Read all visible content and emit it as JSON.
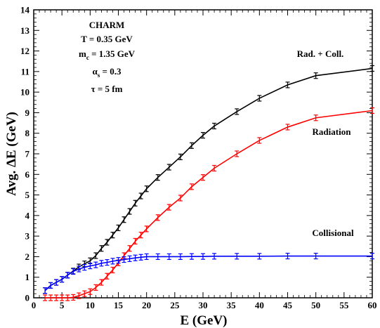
{
  "chart_data": {
    "type": "line",
    "xlabel": "E (GeV)",
    "ylabel": "Avg. ΔE (GeV)",
    "xlim": [
      0,
      60
    ],
    "ylim": [
      0,
      14
    ],
    "xticks": [
      "0",
      "5",
      "10",
      "15",
      "20",
      "25",
      "30",
      "35",
      "40",
      "45",
      "50",
      "55",
      "60"
    ],
    "yticks": [
      "0",
      "1",
      "2",
      "3",
      "4",
      "5",
      "6",
      "7",
      "8",
      "9",
      "10",
      "11",
      "12",
      "13",
      "14"
    ],
    "grid": false,
    "annotations": [
      "CHARM",
      "T = 0.35 GeV",
      "m",
      "c",
      " = 1.35 GeV",
      "α",
      "s",
      " = 0.3",
      "τ = 5 fm"
    ],
    "series": [
      {
        "name": "Rad. + Coll.",
        "color": "#000000",
        "x": [
          2,
          3,
          4,
          5,
          6,
          7,
          8,
          9,
          10,
          11,
          12,
          13,
          14,
          15,
          16,
          17,
          18,
          19,
          20,
          22,
          24,
          26,
          28,
          30,
          32,
          36,
          40,
          45,
          50,
          60
        ],
        "y": [
          0.35,
          0.6,
          0.75,
          0.9,
          1.1,
          1.3,
          1.5,
          1.65,
          1.8,
          2.05,
          2.4,
          2.7,
          3.05,
          3.4,
          3.8,
          4.2,
          4.6,
          4.95,
          5.3,
          5.85,
          6.35,
          6.85,
          7.4,
          7.9,
          8.35,
          9.05,
          9.7,
          10.35,
          10.8,
          11.15
        ]
      },
      {
        "name": "Radiation",
        "color": "#ff0000",
        "x": [
          2,
          3,
          4,
          5,
          6,
          7,
          8,
          9,
          10,
          11,
          12,
          13,
          14,
          15,
          16,
          17,
          18,
          19,
          20,
          22,
          24,
          26,
          28,
          30,
          32,
          36,
          40,
          45,
          50,
          60
        ],
        "y": [
          0.0,
          0.0,
          0.0,
          0.0,
          0.0,
          0.02,
          0.1,
          0.2,
          0.3,
          0.5,
          0.75,
          1.05,
          1.35,
          1.7,
          2.05,
          2.4,
          2.75,
          3.05,
          3.35,
          3.9,
          4.4,
          4.85,
          5.4,
          5.85,
          6.3,
          7.0,
          7.65,
          8.3,
          8.75,
          9.1
        ]
      },
      {
        "name": "Collisional",
        "color": "#0000ff",
        "x": [
          2,
          3,
          4,
          5,
          6,
          7,
          8,
          9,
          10,
          11,
          12,
          13,
          14,
          15,
          16,
          17,
          18,
          19,
          20,
          22,
          24,
          26,
          28,
          30,
          32,
          36,
          40,
          45,
          50,
          60
        ],
        "y": [
          0.35,
          0.6,
          0.75,
          0.9,
          1.1,
          1.28,
          1.4,
          1.48,
          1.55,
          1.6,
          1.68,
          1.72,
          1.78,
          1.82,
          1.86,
          1.9,
          1.94,
          1.97,
          2.0,
          2.0,
          2.0,
          2.0,
          2.01,
          2.01,
          2.02,
          2.02,
          2.02,
          2.03,
          2.03,
          2.03
        ]
      }
    ]
  }
}
